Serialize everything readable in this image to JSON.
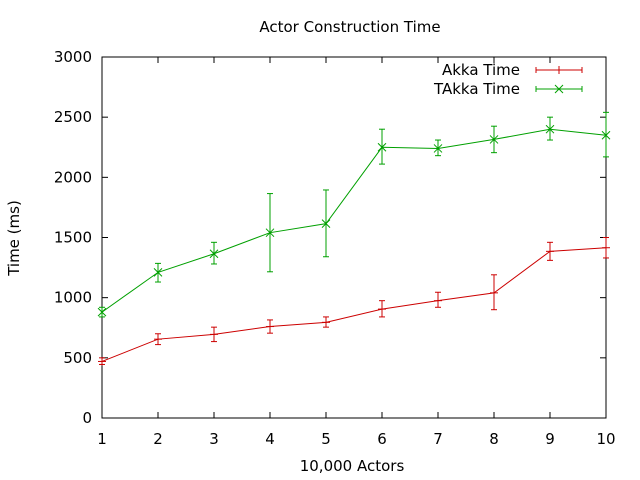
{
  "chart_data": {
    "type": "line",
    "title": "Actor Construction Time",
    "xlabel": "10,000 Actors",
    "ylabel": "Time (ms)",
    "x": [
      1,
      2,
      3,
      4,
      5,
      6,
      7,
      8,
      9,
      10
    ],
    "xlim": [
      1,
      10
    ],
    "ylim": [
      0,
      3000
    ],
    "xticks": [
      "1",
      "2",
      "3",
      "4",
      "5",
      "6",
      "7",
      "8",
      "9",
      "10"
    ],
    "yticks": [
      "0",
      "500",
      "1000",
      "1500",
      "2000",
      "2500",
      "3000"
    ],
    "legend_position": "top-right",
    "grid": false,
    "series": [
      {
        "name": "Akka Time",
        "color": "#cc0000",
        "marker": "plus",
        "values": [
          470,
          655,
          695,
          760,
          795,
          905,
          975,
          1040,
          1385,
          1415
        ],
        "err_low": [
          445,
          610,
          635,
          705,
          755,
          840,
          920,
          900,
          1310,
          1330
        ],
        "err_high": [
          500,
          700,
          755,
          815,
          840,
          975,
          1045,
          1190,
          1460,
          1500
        ]
      },
      {
        "name": "TAkka Time",
        "color": "#00a000",
        "marker": "cross",
        "values": [
          880,
          1210,
          1365,
          1540,
          1615,
          2250,
          2240,
          2315,
          2400,
          2350
        ],
        "err_low": [
          840,
          1130,
          1280,
          1215,
          1340,
          2110,
          2180,
          2205,
          2310,
          2170
        ],
        "err_high": [
          920,
          1285,
          1460,
          1865,
          1895,
          2400,
          2310,
          2425,
          2500,
          2540
        ]
      }
    ]
  }
}
